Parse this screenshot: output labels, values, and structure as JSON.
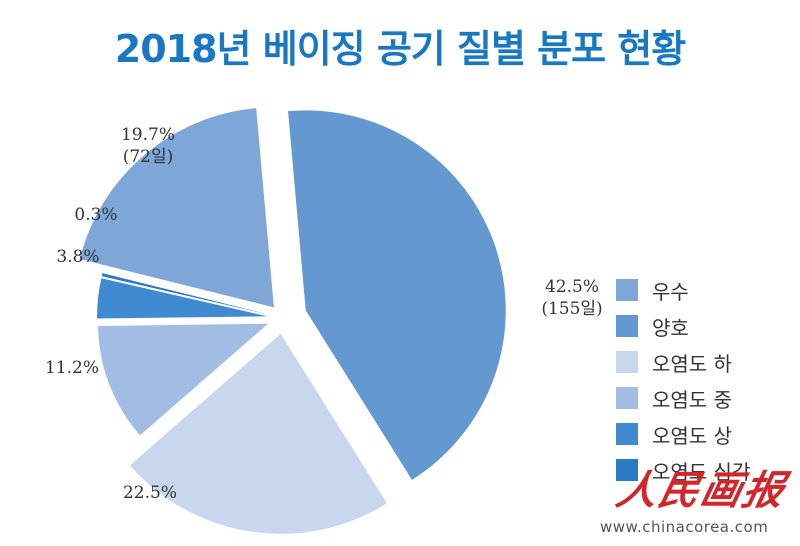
{
  "chart_data": {
    "type": "pie",
    "title": "2018년 베이징 공기 질별 분포 현황",
    "slices": [
      {
        "name": "우수",
        "value": 19.7,
        "label": "19.7%",
        "sublabel": "(72일)",
        "color": "#7ea7d8"
      },
      {
        "name": "양호",
        "value": 42.5,
        "label": "42.5%",
        "sublabel": "(155일)",
        "color": "#6398d0"
      },
      {
        "name": "오염도 하",
        "value": 22.5,
        "label": "22.5%",
        "sublabel": "",
        "color": "#c9d7ee"
      },
      {
        "name": "오염도 중",
        "value": 11.2,
        "label": "11.2%",
        "sublabel": "",
        "color": "#a2bde3"
      },
      {
        "name": "오염도 상",
        "value": 3.8,
        "label": "3.8%",
        "sublabel": "",
        "color": "#3f8ad0"
      },
      {
        "name": "오염도 심각",
        "value": 0.3,
        "label": "0.3%",
        "sublabel": "",
        "color": "#2a7bc6"
      }
    ],
    "legend_position": "right"
  },
  "watermark": {
    "script": "人民画报",
    "url": "www.chinacorea.com"
  }
}
